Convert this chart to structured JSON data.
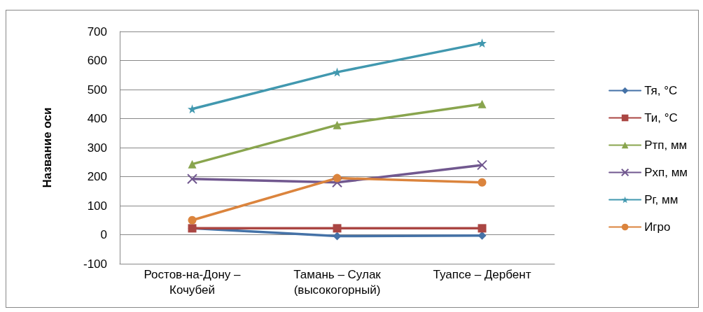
{
  "chart_data": {
    "type": "line",
    "ylabel": "Название оси",
    "categories": [
      "Ростов-на-Дону – Кочубей",
      "Тамань – Сулак (высокогорный)",
      "Туапсе – Дербент"
    ],
    "series": [
      {
        "name": "Тя, °С",
        "color": "#4572a7",
        "marker": "diamond",
        "values": [
          22,
          -5,
          -3
        ]
      },
      {
        "name": "Ти, °С",
        "color": "#aa4643",
        "marker": "square",
        "values": [
          22,
          22,
          22
        ]
      },
      {
        "name": "Ртп, мм",
        "color": "#89a54e",
        "marker": "triangle",
        "values": [
          243,
          378,
          450
        ]
      },
      {
        "name": "Рхп, мм",
        "color": "#71588f",
        "marker": "cross",
        "values": [
          192,
          180,
          240
        ]
      },
      {
        "name": "Рг, мм",
        "color": "#4198af",
        "marker": "star",
        "values": [
          433,
          560,
          660
        ]
      },
      {
        "name": "Игро",
        "color": "#db843d",
        "marker": "circle",
        "values": [
          50,
          195,
          180
        ]
      }
    ],
    "ylim": [
      -100,
      700
    ],
    "yticks": [
      -100,
      0,
      100,
      200,
      300,
      400,
      500,
      600,
      700
    ],
    "grid": "y",
    "legend": "right",
    "line_style": "solid"
  }
}
